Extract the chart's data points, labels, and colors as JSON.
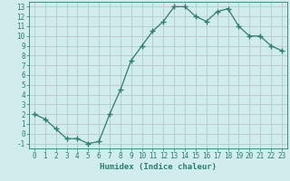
{
  "x": [
    0,
    1,
    2,
    3,
    4,
    5,
    6,
    7,
    8,
    9,
    10,
    11,
    12,
    13,
    14,
    15,
    16,
    17,
    18,
    19,
    20,
    21,
    22,
    23
  ],
  "y": [
    2,
    1.5,
    0.5,
    -0.5,
    -0.5,
    -1,
    -0.8,
    2,
    4.5,
    7.5,
    9,
    10.5,
    11.5,
    13,
    13,
    12,
    11.5,
    12.5,
    12.8,
    11,
    10,
    10,
    9,
    8.5
  ],
  "line_color": "#2e7d6e",
  "marker": "+",
  "marker_size": 4,
  "bg_color": "#d0ecec",
  "grid_color": "#b8c8c8",
  "xlabel": "Humidex (Indice chaleur)",
  "xlim": [
    -0.5,
    23.5
  ],
  "ylim": [
    -1.5,
    13.5
  ],
  "yticks": [
    -1,
    0,
    1,
    2,
    3,
    4,
    5,
    6,
    7,
    8,
    9,
    10,
    11,
    12,
    13
  ],
  "xticks": [
    0,
    1,
    2,
    3,
    4,
    5,
    6,
    7,
    8,
    9,
    10,
    11,
    12,
    13,
    14,
    15,
    16,
    17,
    18,
    19,
    20,
    21,
    22,
    23
  ],
  "axis_fontsize": 5.5,
  "label_fontsize": 6.5,
  "tick_color": "#2e7d6e"
}
